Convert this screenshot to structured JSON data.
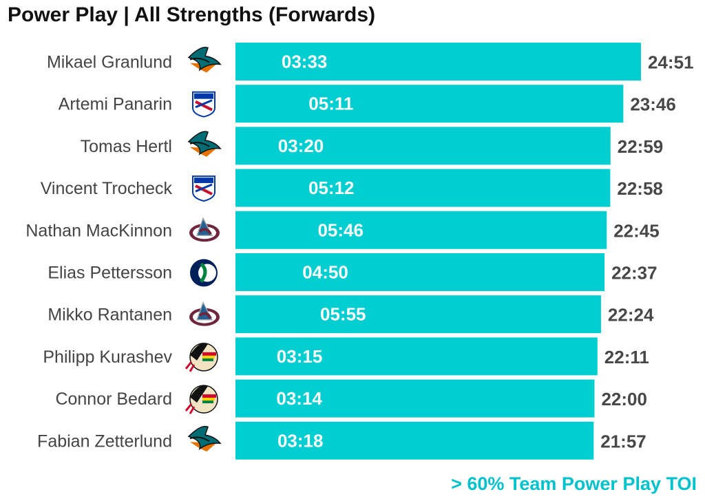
{
  "title": "Power Play | All Strengths (Forwards)",
  "footnote": "> 60% Team Power Play TOI",
  "colors": {
    "bar": "#00ced1",
    "bar_label": "#ffffff",
    "total_label": "#474747",
    "player_label": "#444444",
    "footnote": "#00c2cc",
    "team_logos": {
      "sharks": "#006d75",
      "rangers": "#0038a8",
      "avalanche": "#6f263d",
      "canucks": "#00205b",
      "blackhawks": "#cf0a2c"
    }
  },
  "chart_data": {
    "type": "bar",
    "orientation": "horizontal",
    "categories": [
      "Mikael Granlund",
      "Artemi Panarin",
      "Tomas Hertl",
      "Vincent Trocheck",
      "Nathan MacKinnon",
      "Elias Pettersson",
      "Mikko Rantanen",
      "Philipp Kurashev",
      "Connor Bedard",
      "Fabian Zetterlund"
    ],
    "teams": [
      "sharks-logo-icon",
      "rangers-logo-icon",
      "sharks-logo-icon",
      "rangers-logo-icon",
      "avalanche-logo-icon",
      "canucks-logo-icon",
      "avalanche-logo-icon",
      "blackhawks-logo-icon",
      "blackhawks-logo-icon",
      "sharks-logo-icon"
    ],
    "series": [
      {
        "values": [
          24.85,
          23.767,
          22.983,
          22.967,
          22.75,
          22.617,
          22.4,
          22.183,
          22.0,
          21.95
        ],
        "total_labels": [
          "24:51",
          "23:46",
          "22:59",
          "22:58",
          "22:45",
          "22:37",
          "22:24",
          "22:11",
          "22:00",
          "21:57"
        ]
      }
    ],
    "pp_labels": [
      "03:33",
      "05:11",
      "03:20",
      "05:12",
      "05:46",
      "04:50",
      "05:55",
      "03:15",
      "03:14",
      "03:18"
    ],
    "pp_values": [
      3.55,
      5.183,
      3.333,
      5.2,
      5.767,
      4.833,
      5.917,
      3.25,
      3.233,
      3.3
    ],
    "xlim": [
      0,
      24.85
    ],
    "grid": false,
    "legend": "none"
  }
}
